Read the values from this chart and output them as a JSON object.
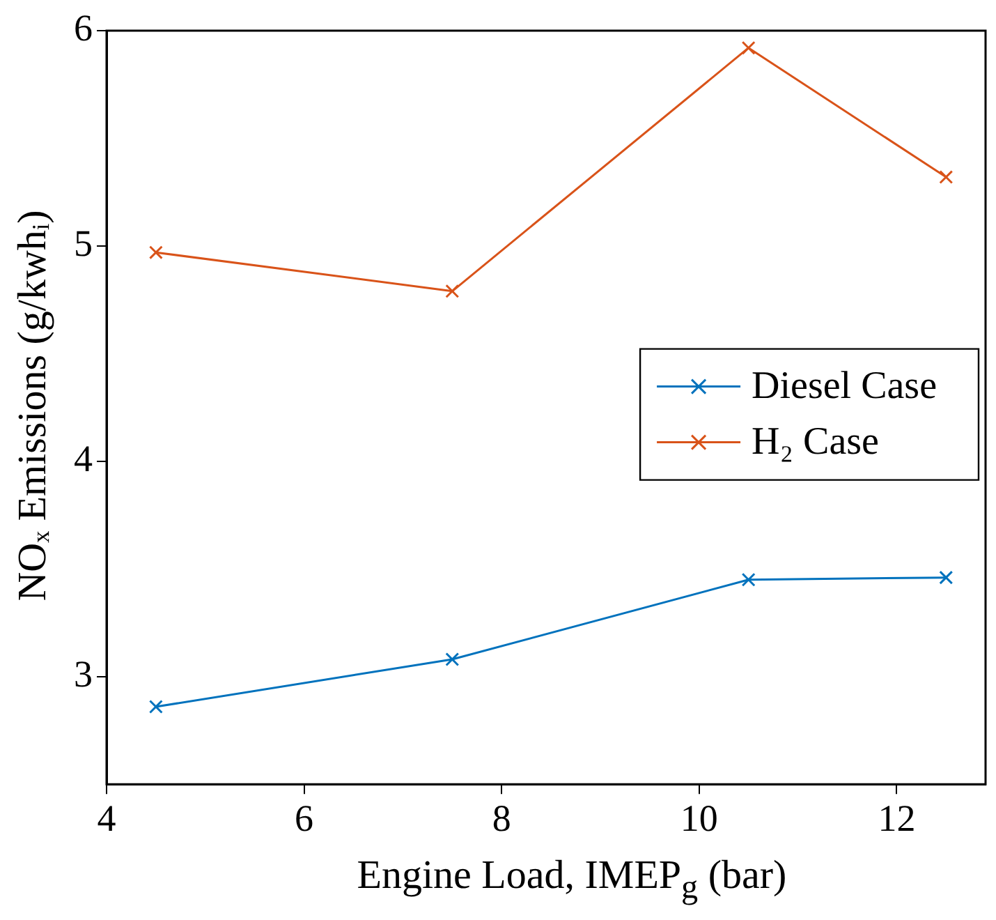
{
  "chart_data": {
    "type": "line",
    "xlabel": "Engine Load, IMEP$_{g}$ (bar)",
    "ylabel": "NOₓ Emissions (g/kwhᵢ)",
    "x": [
      4.5,
      7.5,
      10.5,
      12.5
    ],
    "series": [
      {
        "name": "Diesel Case",
        "color": "#0072bd",
        "values": [
          2.86,
          3.08,
          3.45,
          3.46
        ]
      },
      {
        "name": "H₂ Case",
        "color": "#d95319",
        "values": [
          4.97,
          4.79,
          5.92,
          5.32
        ]
      }
    ],
    "xlim": [
      4,
      12.9
    ],
    "xticks": [
      4,
      6,
      8,
      10,
      12
    ],
    "ylim": [
      2.5,
      6
    ],
    "yticks": [
      3,
      4,
      5,
      6
    ],
    "grid": false,
    "legend": "right",
    "marker": "cross",
    "line_style": "solid"
  }
}
